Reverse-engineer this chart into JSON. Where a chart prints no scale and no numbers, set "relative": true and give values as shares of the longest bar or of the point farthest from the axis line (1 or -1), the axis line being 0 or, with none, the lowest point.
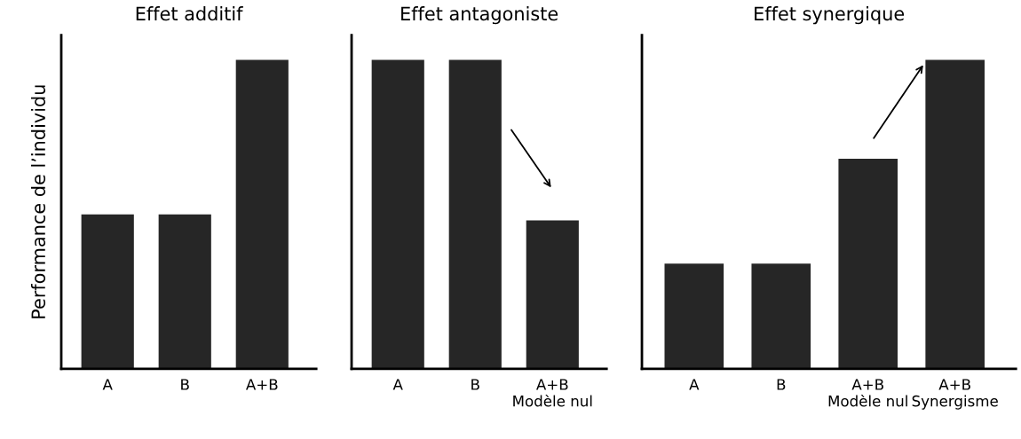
{
  "chart_data": [
    {
      "type": "bar",
      "title": "Effet additif",
      "ylabel": "Performance de l’individu",
      "categories": [
        "A",
        "B",
        "A+B"
      ],
      "values": [
        0.5,
        0.5,
        1
      ],
      "color": "#262626",
      "relative": true,
      "tick_labels": "x"
    },
    {
      "type": "bar",
      "title": "Effet antagoniste",
      "categories": [
        "A",
        "B",
        "A+B\nModèle nul"
      ],
      "values": [
        1,
        1,
        0.48
      ],
      "color": "#262626",
      "relative": true,
      "tick_labels": "x"
    },
    {
      "type": "bar",
      "title": "Effet synergique",
      "categories": [
        "A",
        "B",
        "A+B\nModèle nul",
        "A+B\nSynergisme"
      ],
      "values": [
        0.34,
        0.34,
        0.68,
        1
      ],
      "color": "#262626",
      "relative": true,
      "tick_labels": "x"
    }
  ]
}
